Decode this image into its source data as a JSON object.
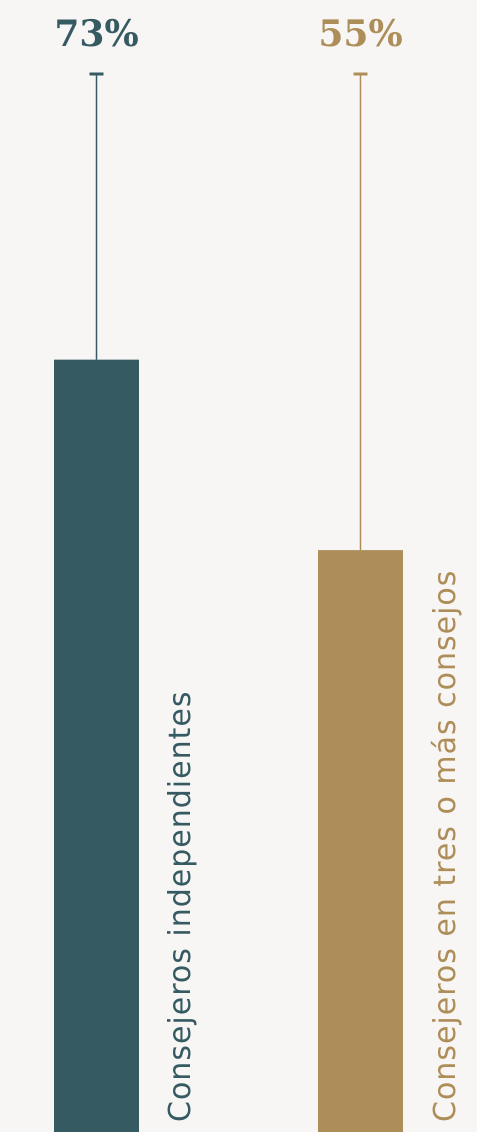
{
  "chart_data": {
    "type": "bar",
    "categories": [
      "Consejeros  independientes",
      "Consejeros en tres o más consejos"
    ],
    "values": [
      73,
      55
    ],
    "value_labels": [
      "73%",
      "55%"
    ],
    "ylim": [
      0,
      100
    ],
    "colors": [
      "#365a62",
      "#ad8d58"
    ]
  }
}
